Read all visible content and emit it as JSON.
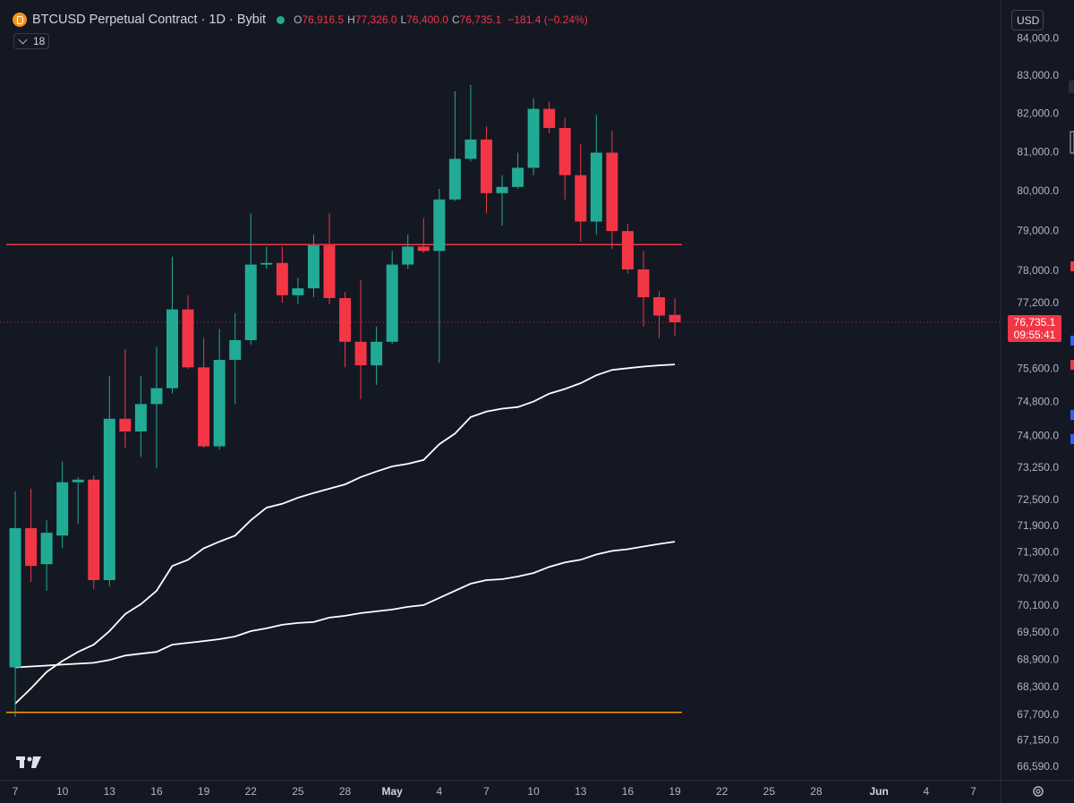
{
  "chart_data": {
    "type": "candlestick",
    "header": {
      "symbol": "BTCUSD Perpetual Contract · 1D · Bybit",
      "ohlc": [
        {
          "key": "O",
          "label": "76,916.5"
        },
        {
          "key": "H",
          "label": "77,326.0"
        },
        {
          "key": "L",
          "label": "76,400.0"
        },
        {
          "key": "C",
          "label": "76,735.1"
        }
      ],
      "change": "−181.4 (−0.24%)",
      "indicators": "18",
      "currency": "USD"
    },
    "up_color": "#22ab94",
    "down_color": "#f23645",
    "open": [
      68740,
      71860,
      71040,
      71690,
      72920,
      72980,
      70680,
      74410,
      74110,
      74760,
      75140,
      77050,
      75640,
      73760,
      75820,
      76300,
      78160,
      78200,
      77400,
      77570,
      78640,
      77330,
      76260,
      75690,
      76260,
      78160,
      78610,
      78500,
      79800,
      80840,
      81340,
      79960,
      80120,
      80610,
      82140,
      81640,
      80420,
      79240,
      81000,
      79000,
      78040,
      77350,
      76916.5
    ],
    "high": [
      72710,
      72770,
      72040,
      73400,
      73040,
      73080,
      75430,
      76080,
      75430,
      76130,
      78360,
      77400,
      76350,
      76570,
      76960,
      79445,
      78610,
      78610,
      77830,
      78910,
      79445,
      77480,
      77780,
      76630,
      78500,
      78910,
      79330,
      80070,
      82600,
      82770,
      81680,
      80420,
      81000,
      82420,
      82330,
      81910,
      81230,
      81980,
      81570,
      79180,
      78500,
      77500,
      77326
    ],
    "low": [
      67660,
      70640,
      70440,
      71400,
      71960,
      70480,
      70540,
      73720,
      73510,
      73250,
      75010,
      75600,
      73720,
      73680,
      74760,
      76190,
      78050,
      77220,
      77180,
      77350,
      77180,
      75640,
      74880,
      75220,
      76210,
      78050,
      78450,
      75750,
      79760,
      80770,
      79445,
      79130,
      80070,
      80420,
      81500,
      79800,
      78730,
      78910,
      78550,
      77935,
      76630,
      76350,
      76400
    ],
    "close": [
      71860,
      71000,
      71755,
      72920,
      72980,
      70680,
      74410,
      74110,
      74760,
      75140,
      77050,
      75640,
      73760,
      75820,
      76300,
      78160,
      78200,
      77400,
      77570,
      78640,
      77330,
      76260,
      75690,
      76260,
      78160,
      78610,
      78500,
      79800,
      80840,
      81340,
      79960,
      80120,
      80610,
      82140,
      81640,
      80420,
      79240,
      81000,
      79000,
      78040,
      77350,
      76900,
      76735.1
    ],
    "series": [
      {
        "color": "#ffffff",
        "values": [
          67950,
          68280,
          68640,
          68880,
          69080,
          69240,
          69540,
          69920,
          70140,
          70440,
          71000,
          71140,
          71400,
          71550,
          71690,
          72040,
          72330,
          72420,
          72560,
          72670,
          72770,
          72870,
          73040,
          73170,
          73290,
          73350,
          73440,
          73810,
          74060,
          74450,
          74580,
          74650,
          74690,
          74820,
          75010,
          75120,
          75260,
          75450,
          75580,
          75620,
          75660,
          75690,
          75710
        ]
      },
      {
        "color": "#ffffff",
        "values": [
          68740,
          68760,
          68780,
          68800,
          68820,
          68840,
          68900,
          69000,
          69040,
          69080,
          69240,
          69280,
          69320,
          69360,
          69420,
          69540,
          69600,
          69680,
          69720,
          69740,
          69840,
          69880,
          69940,
          69980,
          70020,
          70080,
          70120,
          70280,
          70440,
          70600,
          70680,
          70700,
          70760,
          70840,
          70980,
          71080,
          71140,
          71260,
          71340,
          71380,
          71440,
          71500,
          71550
        ]
      }
    ],
    "hlines": [
      {
        "value": 78660,
        "color": "#f23645"
      },
      {
        "value": 67760,
        "color": "#ff9800"
      }
    ],
    "last_price_label": "76,735.1",
    "countdown": "09:55:41",
    "log_scale": true,
    "ylim": [
      66340,
      85040
    ],
    "yticks": [
      {
        "value": 84000,
        "label": "84,000.0"
      },
      {
        "value": 83000,
        "label": "83,000.0"
      },
      {
        "value": 82000,
        "label": "82,000.0"
      },
      {
        "value": 81000,
        "label": "81,000.0"
      },
      {
        "value": 80000,
        "label": "80,000.0"
      },
      {
        "value": 79000,
        "label": "79,000.0"
      },
      {
        "value": 78000,
        "label": "78,000.0"
      },
      {
        "value": 77200,
        "label": "77,200.0"
      },
      {
        "value": 75600,
        "label": "75,600.0"
      },
      {
        "value": 74800,
        "label": "74,800.0"
      },
      {
        "value": 74000,
        "label": "74,000.0"
      },
      {
        "value": 73250,
        "label": "73,250.0"
      },
      {
        "value": 72500,
        "label": "72,500.0"
      },
      {
        "value": 71900,
        "label": "71,900.0"
      },
      {
        "value": 71300,
        "label": "71,300.0"
      },
      {
        "value": 70700,
        "label": "70,700.0"
      },
      {
        "value": 70100,
        "label": "70,100.0"
      },
      {
        "value": 69500,
        "label": "69,500.0"
      },
      {
        "value": 68900,
        "label": "68,900.0"
      },
      {
        "value": 68300,
        "label": "68,300.0"
      },
      {
        "value": 67700,
        "label": "67,700.0"
      },
      {
        "value": 67150,
        "label": "67,150.0"
      },
      {
        "value": 66590,
        "label": "66,590.0"
      }
    ],
    "xlim": [
      -0.97,
      62.74
    ],
    "xticks": [
      {
        "value": 0,
        "label": "7"
      },
      {
        "value": 3,
        "label": "10"
      },
      {
        "value": 6,
        "label": "13"
      },
      {
        "value": 9,
        "label": "16"
      },
      {
        "value": 12,
        "label": "19"
      },
      {
        "value": 15,
        "label": "22"
      },
      {
        "value": 18,
        "label": "25"
      },
      {
        "value": 21,
        "label": "28"
      },
      {
        "value": 24,
        "label": "May"
      },
      {
        "value": 27,
        "label": "4"
      },
      {
        "value": 30,
        "label": "7"
      },
      {
        "value": 33,
        "label": "10"
      },
      {
        "value": 36,
        "label": "13"
      },
      {
        "value": 39,
        "label": "16"
      },
      {
        "value": 42,
        "label": "19"
      },
      {
        "value": 45,
        "label": "22"
      },
      {
        "value": 48,
        "label": "25"
      },
      {
        "value": 51,
        "label": "28"
      },
      {
        "value": 55,
        "label": "Jun"
      },
      {
        "value": 58,
        "label": "4"
      },
      {
        "value": 61,
        "label": "7"
      }
    ]
  }
}
